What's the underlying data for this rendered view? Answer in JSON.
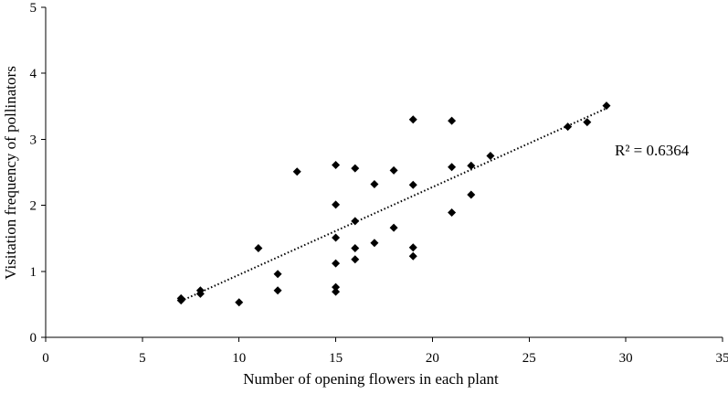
{
  "chart_data": {
    "type": "scatter",
    "title": "",
    "xlabel": "Number of opening flowers  in each plant",
    "ylabel": "Visitation frequency of pollinators",
    "xlim": [
      0,
      35
    ],
    "ylim": [
      0,
      5
    ],
    "x_ticks": [
      0,
      5,
      10,
      15,
      20,
      25,
      30,
      35
    ],
    "y_ticks": [
      0,
      1,
      2,
      3,
      4,
      5
    ],
    "grid": false,
    "legend": "none",
    "marker": "diamond",
    "marker_color": "#000000",
    "series": [
      {
        "points": [
          [
            7,
            0.59
          ],
          [
            7,
            0.56
          ],
          [
            8,
            0.71
          ],
          [
            8,
            0.66
          ],
          [
            10,
            0.53
          ],
          [
            11,
            1.35
          ],
          [
            12,
            0.96
          ],
          [
            12,
            0.71
          ],
          [
            13,
            2.51
          ],
          [
            15,
            2.61
          ],
          [
            15,
            2.01
          ],
          [
            15,
            1.51
          ],
          [
            15,
            1.12
          ],
          [
            15,
            0.76
          ],
          [
            15,
            0.69
          ],
          [
            16,
            2.56
          ],
          [
            16,
            1.76
          ],
          [
            16,
            1.35
          ],
          [
            16,
            1.18
          ],
          [
            17,
            2.32
          ],
          [
            17,
            1.43
          ],
          [
            18,
            2.53
          ],
          [
            18,
            1.66
          ],
          [
            19,
            3.3
          ],
          [
            19,
            2.31
          ],
          [
            19,
            1.36
          ],
          [
            19,
            1.23
          ],
          [
            21,
            3.28
          ],
          [
            21,
            2.58
          ],
          [
            21,
            1.89
          ],
          [
            22,
            2.6
          ],
          [
            22,
            2.16
          ],
          [
            23,
            2.75
          ],
          [
            27,
            3.19
          ],
          [
            28,
            3.26
          ],
          [
            29,
            3.51
          ]
        ]
      }
    ],
    "trendline": {
      "type": "linear",
      "style": "dotted",
      "x_range": [
        7,
        29
      ],
      "y_range": [
        0.55,
        3.47
      ]
    },
    "annotation": "R² = 0.6364"
  }
}
